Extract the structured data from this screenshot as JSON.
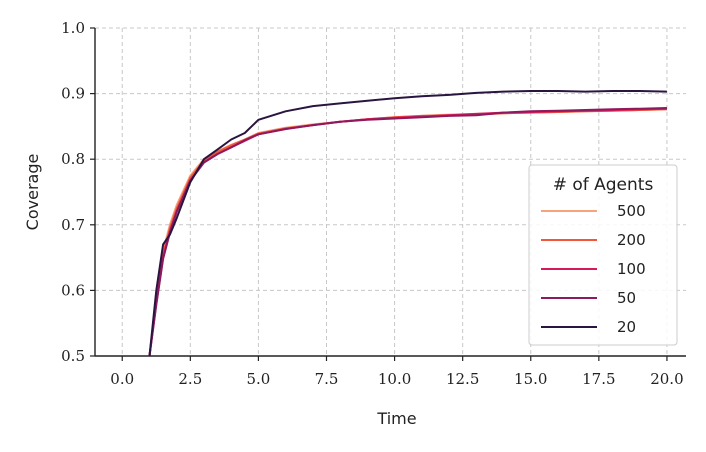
{
  "chart_data": {
    "type": "line",
    "title": "",
    "xlabel": "Time",
    "ylabel": "Coverage",
    "xlim": [
      -1.0,
      20.7
    ],
    "ylim": [
      0.5,
      1.0
    ],
    "xticks": [
      0.0,
      2.5,
      5.0,
      7.5,
      10.0,
      12.5,
      15.0,
      17.5,
      20.0
    ],
    "xtick_labels": [
      "0.0",
      "2.5",
      "5.0",
      "7.5",
      "10.0",
      "12.5",
      "15.0",
      "17.5",
      "20.0"
    ],
    "yticks": [
      0.5,
      0.6,
      0.7,
      0.8,
      0.9,
      1.0
    ],
    "ytick_labels": [
      "0.5",
      "0.6",
      "0.7",
      "0.8",
      "0.9",
      "1.0"
    ],
    "grid": true,
    "legend": {
      "title": "# of Agents",
      "placement": "center-right"
    },
    "x": [
      1.0,
      1.25,
      1.5,
      1.75,
      2.0,
      2.5,
      3.0,
      3.5,
      4.0,
      4.5,
      5.0,
      6.0,
      7.0,
      8.0,
      9.0,
      10.0,
      11.0,
      12.0,
      13.0,
      14.0,
      15.0,
      16.0,
      17.0,
      18.0,
      19.0,
      20.0
    ],
    "series": [
      {
        "name": "500",
        "color": "#f6a47b",
        "values": [
          0.5,
          0.59,
          0.66,
          0.7,
          0.73,
          0.775,
          0.8,
          0.812,
          0.822,
          0.83,
          0.84,
          0.848,
          0.853,
          0.857,
          0.861,
          0.864,
          0.866,
          0.868,
          0.869,
          0.87,
          0.871,
          0.872,
          0.873,
          0.874,
          0.875,
          0.876
        ]
      },
      {
        "name": "200",
        "color": "#f0573b",
        "values": [
          0.5,
          0.585,
          0.655,
          0.695,
          0.725,
          0.772,
          0.798,
          0.811,
          0.821,
          0.83,
          0.839,
          0.847,
          0.852,
          0.857,
          0.861,
          0.864,
          0.866,
          0.867,
          0.868,
          0.87,
          0.871,
          0.872,
          0.873,
          0.874,
          0.875,
          0.876
        ]
      },
      {
        "name": "100",
        "color": "#d7185a",
        "values": [
          0.5,
          0.58,
          0.65,
          0.69,
          0.72,
          0.768,
          0.795,
          0.808,
          0.818,
          0.828,
          0.838,
          0.846,
          0.852,
          0.857,
          0.861,
          0.863,
          0.865,
          0.867,
          0.869,
          0.871,
          0.872,
          0.873,
          0.874,
          0.875,
          0.876,
          0.877
        ]
      },
      {
        "name": "50",
        "color": "#8d1a5e",
        "values": [
          0.5,
          0.578,
          0.648,
          0.688,
          0.72,
          0.767,
          0.795,
          0.808,
          0.818,
          0.829,
          0.838,
          0.846,
          0.852,
          0.857,
          0.86,
          0.862,
          0.864,
          0.866,
          0.867,
          0.871,
          0.873,
          0.874,
          0.875,
          0.876,
          0.877,
          0.878
        ]
      },
      {
        "name": "20",
        "color": "#2a1540",
        "values": [
          0.5,
          0.6,
          0.67,
          0.685,
          0.71,
          0.765,
          0.8,
          0.815,
          0.83,
          0.84,
          0.86,
          0.873,
          0.881,
          0.885,
          0.889,
          0.893,
          0.896,
          0.898,
          0.901,
          0.903,
          0.904,
          0.904,
          0.903,
          0.904,
          0.904,
          0.903
        ]
      }
    ]
  }
}
